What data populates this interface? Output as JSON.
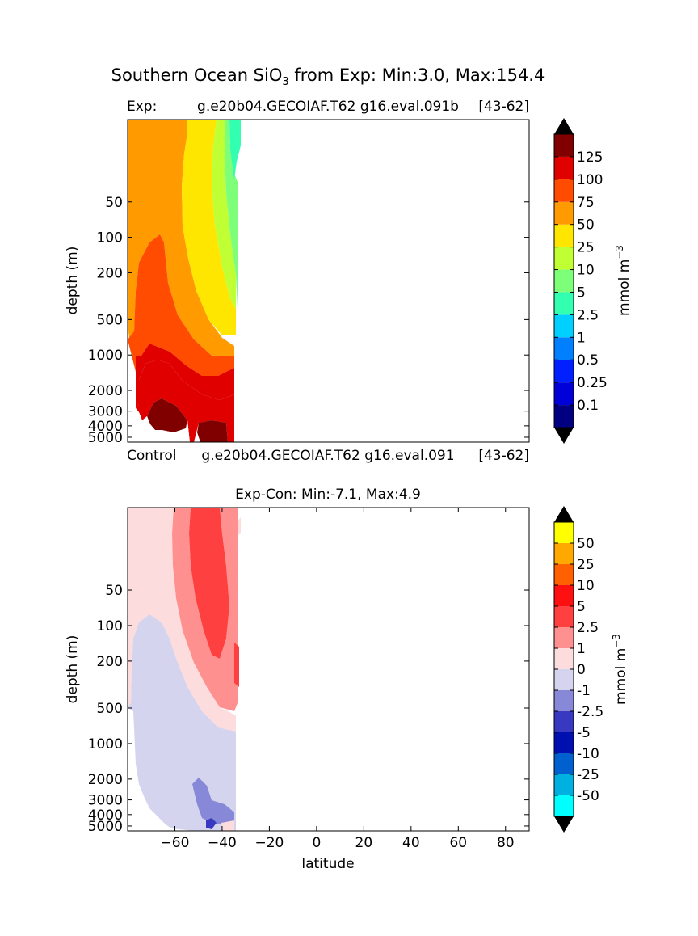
{
  "figure": {
    "suptitle_pre": "Southern Ocean SiO",
    "suptitle_sub": "3",
    "suptitle_post": " from Exp: Min:3.0, Max:154.4"
  },
  "chart_data": [
    {
      "type": "contour",
      "title_left": "Exp:",
      "title_center": "g.e20b04.GECOIAF.T62 g16.eval.091b",
      "title_right": "[43-62]",
      "ylabel": "depth (m)",
      "xlabel": "",
      "y_ticks": [
        50,
        100,
        200,
        500,
        1000,
        2000,
        3000,
        4000,
        5000
      ],
      "y_range_m": [
        10,
        5500
      ],
      "x_range": [
        -80,
        90
      ],
      "colorbar": {
        "label": "mmol m",
        "label_sup": "−3",
        "levels": [
          "0.1",
          "0.25",
          "0.5",
          "1",
          "2.5",
          "5",
          "10",
          "25",
          "50",
          "75",
          "100",
          "125"
        ],
        "colors": [
          "#000080",
          "#0000d8",
          "#0020ff",
          "#0080ff",
          "#00d0ff",
          "#33ffb0",
          "#7dff7a",
          "#bfff33",
          "#ffe600",
          "#ff9a00",
          "#ff4c00",
          "#e10000",
          "#800000"
        ]
      }
    },
    {
      "type": "contour",
      "title_left": "Control",
      "title_center": "g.e20b04.GECOIAF.T62 g16.eval.091",
      "title_right": "[43-62]",
      "subtitle": "Exp-Con: Min:-7.1, Max:4.9",
      "ylabel": "depth (m)",
      "xlabel": "latitude",
      "x_ticks": [
        -60,
        -40,
        -20,
        0,
        20,
        40,
        60,
        80
      ],
      "y_ticks": [
        50,
        100,
        200,
        500,
        1000,
        2000,
        3000,
        4000,
        5000
      ],
      "y_range_m": [
        10,
        5500
      ],
      "x_range": [
        -80,
        90
      ],
      "colorbar": {
        "label": "mmol m",
        "label_sup": "−3",
        "levels": [
          "-50",
          "-25",
          "-10",
          "-5",
          "-2.5",
          "-1",
          "0",
          "1",
          "2.5",
          "5",
          "10",
          "25",
          "50"
        ],
        "colors": [
          "#00ffff",
          "#00b0e0",
          "#0060d0",
          "#0010b0",
          "#3838c0",
          "#8888d8",
          "#d4d4ee",
          "#fcdcdc",
          "#ff9090",
          "#ff4040",
          "#ff1010",
          "#ff6000",
          "#ffa800",
          "#ffff00"
        ]
      }
    }
  ]
}
